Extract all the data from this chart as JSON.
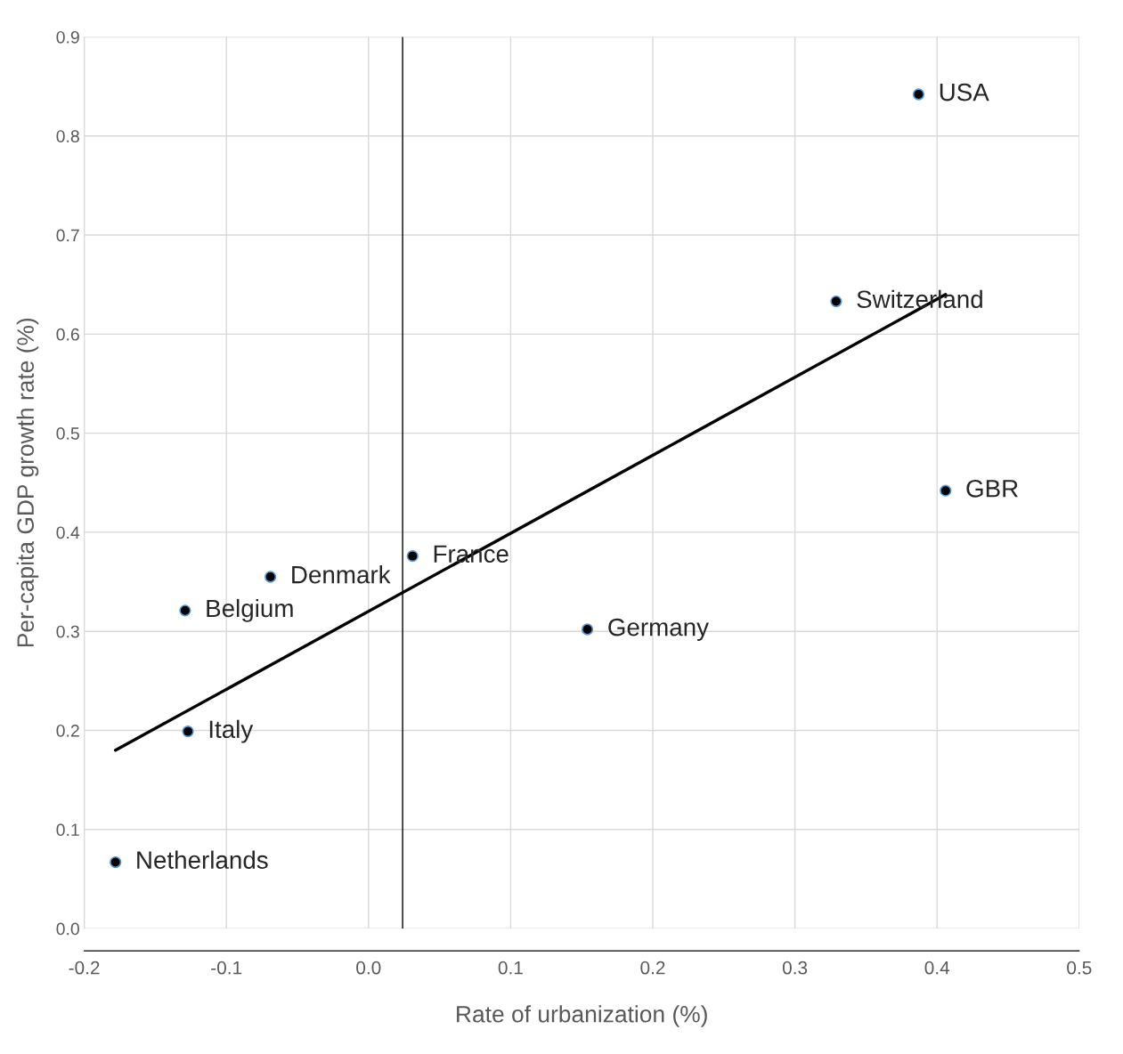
{
  "chart_data": {
    "type": "scatter",
    "xlabel": "Rate of urbanization (%)",
    "ylabel": "Per-capita GDP growth rate (%)",
    "x": [
      0.387,
      0.329,
      0.406,
      0.031,
      -0.069,
      -0.129,
      0.154,
      -0.127,
      -0.178
    ],
    "series": [
      {
        "color": "#000000",
        "marker": "circle",
        "values": [
          0.842,
          0.633,
          0.442,
          0.376,
          0.355,
          0.321,
          0.302,
          0.199,
          0.067
        ]
      },
      {
        "type": "line",
        "color": "#000000",
        "x": [
          -0.178,
          0.406
        ],
        "values": [
          0.18,
          0.64
        ]
      }
    ],
    "grid": true,
    "legend": false,
    "xlim": [
      -0.2,
      0.5
    ],
    "ylim": [
      0.0,
      0.9
    ],
    "xticks": [
      -0.2,
      -0.1,
      {
        "value": 0,
        "label": "0.0"
      },
      0.1,
      0.2,
      0.3,
      0.4,
      0.5
    ],
    "yticks": [
      {
        "value": 0,
        "label": "0.0"
      },
      0.1,
      0.2,
      0.3,
      0.4,
      0.5,
      0.6,
      0.7,
      0.8,
      0.9
    ],
    "ref_lines": [
      {
        "axis": "x",
        "value": 0.024,
        "color": "#000000"
      }
    ],
    "annotations": [
      {
        "text": "USA",
        "x": 0.387,
        "y": 0.842
      },
      {
        "text": "Switzerland",
        "x": 0.329,
        "y": 0.633
      },
      {
        "text": "GBR",
        "x": 0.406,
        "y": 0.442
      },
      {
        "text": "France",
        "x": 0.031,
        "y": 0.376
      },
      {
        "text": "Denmark",
        "x": -0.069,
        "y": 0.355
      },
      {
        "text": "Belgium",
        "x": -0.129,
        "y": 0.321
      },
      {
        "text": "Germany",
        "x": 0.154,
        "y": 0.302
      },
      {
        "text": "Italy",
        "x": -0.127,
        "y": 0.199
      },
      {
        "text": "Netherlands",
        "x": -0.178,
        "y": 0.067
      }
    ]
  }
}
